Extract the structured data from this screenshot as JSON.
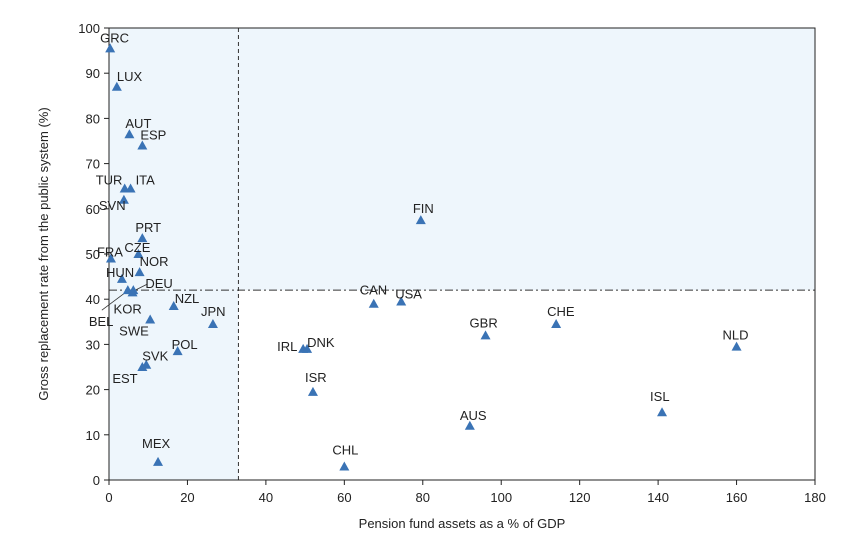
{
  "chart_data": {
    "type": "scatter",
    "xlabel": "Pension fund assets as a % of GDP",
    "ylabel": "Gross replacement rate from the public system (%)",
    "xlim": [
      0,
      180
    ],
    "ylim": [
      0,
      100
    ],
    "xticks": [
      0,
      20,
      40,
      60,
      80,
      100,
      120,
      140,
      160,
      180
    ],
    "yticks": [
      0,
      10,
      20,
      30,
      40,
      50,
      60,
      70,
      80,
      90,
      100
    ],
    "grid": false,
    "reference_lines": {
      "x": 33,
      "y": 42
    },
    "marker": "triangle",
    "marker_color": "#3a73b5",
    "shade_color": "#eef6fc",
    "points": [
      {
        "label": "GRC",
        "x": 0.3,
        "y": 95.5
      },
      {
        "label": "LUX",
        "x": 2,
        "y": 87
      },
      {
        "label": "AUT",
        "x": 5.2,
        "y": 76.5
      },
      {
        "label": "ESP",
        "x": 8.5,
        "y": 74
      },
      {
        "label": "TUR",
        "x": 4,
        "y": 64.5
      },
      {
        "label": "ITA",
        "x": 5.5,
        "y": 64.5
      },
      {
        "label": "SVN",
        "x": 3.8,
        "y": 62
      },
      {
        "label": "FIN",
        "x": 79.5,
        "y": 57.5
      },
      {
        "label": "PRT",
        "x": 8.5,
        "y": 53.5
      },
      {
        "label": "CZE",
        "x": 7.5,
        "y": 50
      },
      {
        "label": "FRA",
        "x": 0.5,
        "y": 49
      },
      {
        "label": "HUN",
        "x": 3.3,
        "y": 44.5
      },
      {
        "label": "NOR",
        "x": 7.8,
        "y": 46
      },
      {
        "label": "DEU",
        "x": 6.2,
        "y": 42
      },
      {
        "label": "BEL",
        "x": 4.8,
        "y": 42
      },
      {
        "label": "KOR",
        "x": 6,
        "y": 41.5
      },
      {
        "label": "NZL",
        "x": 16.5,
        "y": 38.5
      },
      {
        "label": "SWE",
        "x": 10.5,
        "y": 35.5
      },
      {
        "label": "JPN",
        "x": 26.5,
        "y": 34.5
      },
      {
        "label": "CAN",
        "x": 67.5,
        "y": 39
      },
      {
        "label": "USA",
        "x": 74.5,
        "y": 39.5
      },
      {
        "label": "CHE",
        "x": 114,
        "y": 34.5
      },
      {
        "label": "GBR",
        "x": 96,
        "y": 32
      },
      {
        "label": "NLD",
        "x": 160,
        "y": 29.5
      },
      {
        "label": "IRL",
        "x": 49.5,
        "y": 29
      },
      {
        "label": "DNK",
        "x": 50.5,
        "y": 29
      },
      {
        "label": "POL",
        "x": 17.5,
        "y": 28.5
      },
      {
        "label": "SVK",
        "x": 9.5,
        "y": 25.5
      },
      {
        "label": "EST",
        "x": 8.5,
        "y": 25
      },
      {
        "label": "ISR",
        "x": 52,
        "y": 19.5
      },
      {
        "label": "ISL",
        "x": 141,
        "y": 15
      },
      {
        "label": "AUS",
        "x": 92,
        "y": 12
      },
      {
        "label": "MEX",
        "x": 12.5,
        "y": 4
      },
      {
        "label": "CHL",
        "x": 60,
        "y": 3
      }
    ]
  }
}
